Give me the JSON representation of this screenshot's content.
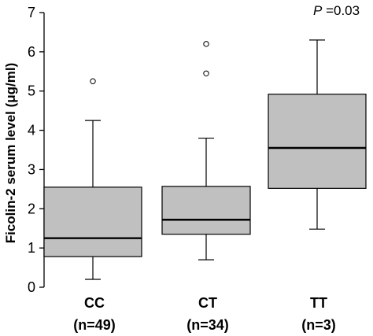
{
  "chart_data": {
    "type": "box",
    "ylabel": "Ficolin-2 serum level (μg/ml)",
    "ylim": [
      0,
      7
    ],
    "yticks": [
      0,
      1,
      2,
      3,
      4,
      5,
      6,
      7
    ],
    "annotation": {
      "italic": "P",
      "text": " =0.03"
    },
    "box_fill": "#c0c0c0",
    "groups": [
      {
        "label": "CC",
        "n_label": "(n=49)",
        "whisker_low": 0.2,
        "q1": 0.78,
        "median": 1.25,
        "q3": 2.55,
        "whisker_high": 4.25,
        "outliers": [
          5.25
        ]
      },
      {
        "label": "CT",
        "n_label": "(n=34)",
        "whisker_low": 0.7,
        "q1": 1.35,
        "median": 1.72,
        "q3": 2.57,
        "whisker_high": 3.8,
        "outliers": [
          5.45,
          6.2
        ]
      },
      {
        "label": "TT",
        "n_label": "(n=3)",
        "whisker_low": 1.48,
        "q1": 2.52,
        "median": 3.55,
        "q3": 4.92,
        "whisker_high": 6.3,
        "outliers": []
      }
    ]
  }
}
